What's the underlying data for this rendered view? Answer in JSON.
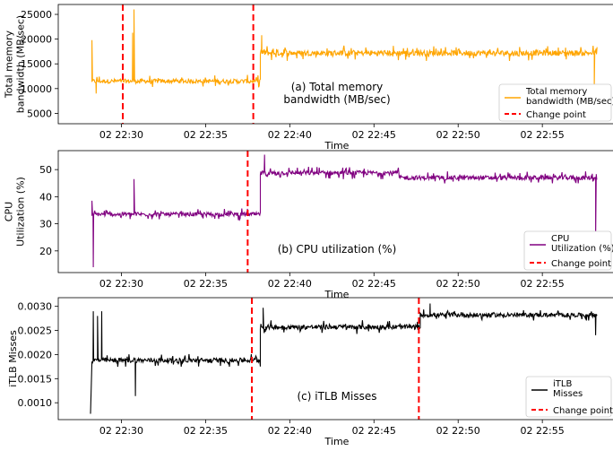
{
  "chart_data": [
    {
      "type": "line",
      "annotation": "(a) Total memory\nbandwidth (MB/sec)",
      "xlabel": "Time",
      "ylabel": "Total memory\nbandwidth (MB/sec)",
      "x_ticks": [
        "02 22:30",
        "02 22:35",
        "02 22:40",
        "02 22:45",
        "02 22:50",
        "02 22:55"
      ],
      "y_ticks": [
        5000,
        10000,
        15000,
        20000,
        25000
      ],
      "y_tick_labels": [
        "5000",
        "10000",
        "15000",
        "20000",
        "25000"
      ],
      "xlim": [
        "22:26:15",
        "22:59:15"
      ],
      "ylim": [
        2900,
        27000
      ],
      "grid": false,
      "legend_position": "lower-right",
      "series": [
        {
          "name": "Total memory\nbandwidth (MB/sec)",
          "color": "#ffa500",
          "segments": [
            {
              "start": "22:28:15",
              "end": "22:38:15",
              "level": 11500,
              "noise": 700
            },
            {
              "start": "22:38:15",
              "end": "22:58:15",
              "level": 17200,
              "noise": 900
            }
          ],
          "spikes": [
            {
              "x": "22:28:15",
              "y": 19800
            },
            {
              "x": "22:28:30",
              "y": 9000
            },
            {
              "x": "22:30:40",
              "y": 21300
            },
            {
              "x": "22:30:45",
              "y": 26000
            },
            {
              "x": "22:38:20",
              "y": 20800
            },
            {
              "x": "22:58:05",
              "y": 10500
            }
          ]
        },
        {
          "name": "Change point",
          "color": "#ff0000",
          "style": "dashed",
          "x": [
            "22:30:05",
            "22:37:50"
          ]
        }
      ]
    },
    {
      "type": "line",
      "annotation": "(b) CPU utilization (%)",
      "xlabel": "Time",
      "ylabel": "CPU\nUtilization (%)",
      "x_ticks": [
        "02 22:30",
        "02 22:35",
        "02 22:40",
        "02 22:45",
        "02 22:50",
        "02 22:55"
      ],
      "y_ticks": [
        20,
        30,
        40,
        50
      ],
      "y_tick_labels": [
        "20",
        "30",
        "40",
        "50"
      ],
      "xlim": [
        "22:26:15",
        "22:59:15"
      ],
      "ylim": [
        12,
        57
      ],
      "grid": false,
      "legend_position": "lower-right",
      "series": [
        {
          "name": "CPU\nUtilization (%)",
          "color": "#800080",
          "segments": [
            {
              "start": "22:28:15",
              "end": "22:38:15",
              "level": 33.5,
              "noise": 1.2
            },
            {
              "start": "22:38:15",
              "end": "22:46:30",
              "level": 48.8,
              "noise": 1.3
            },
            {
              "start": "22:46:30",
              "end": "22:58:15",
              "level": 47.0,
              "noise": 1.3
            }
          ],
          "spikes": [
            {
              "x": "22:28:15",
              "y": 38.5
            },
            {
              "x": "22:28:20",
              "y": 14
            },
            {
              "x": "22:30:45",
              "y": 46.5
            },
            {
              "x": "22:38:30",
              "y": 55.5
            },
            {
              "x": "22:58:10",
              "y": 24
            }
          ]
        },
        {
          "name": "Change point",
          "color": "#ff0000",
          "style": "dashed",
          "x": [
            "22:37:30"
          ]
        }
      ]
    },
    {
      "type": "line",
      "annotation": "(c) iTLB Misses",
      "xlabel": "Time",
      "ylabel": "iTLB Misses",
      "x_ticks": [
        "02 22:30",
        "02 22:35",
        "02 22:40",
        "02 22:45",
        "02 22:50",
        "02 22:55"
      ],
      "y_ticks": [
        0.001,
        0.0015,
        0.002,
        0.0025,
        0.003
      ],
      "y_tick_labels": [
        "0.0010",
        "0.0015",
        "0.0020",
        "0.0025",
        "0.0030"
      ],
      "xlim": [
        "22:26:15",
        "22:59:15"
      ],
      "ylim": [
        0.00065,
        0.00318
      ],
      "grid": false,
      "legend_position": "lower-right",
      "series": [
        {
          "name": "iTLB\nMisses",
          "color": "#000000",
          "segments": [
            {
              "start": "22:28:15",
              "end": "22:38:15",
              "level": 0.00188,
              "noise": 8e-05
            },
            {
              "start": "22:38:15",
              "end": "22:47:45",
              "level": 0.00257,
              "noise": 8e-05
            },
            {
              "start": "22:47:45",
              "end": "22:58:15",
              "level": 0.00282,
              "noise": 7e-05
            }
          ],
          "spikes": [
            {
              "x": "22:28:10",
              "y": 0.00077
            },
            {
              "x": "22:28:20",
              "y": 0.0029
            },
            {
              "x": "22:28:35",
              "y": 0.0028
            },
            {
              "x": "22:28:50",
              "y": 0.0029
            },
            {
              "x": "22:30:50",
              "y": 0.00114
            },
            {
              "x": "22:38:25",
              "y": 0.00297
            },
            {
              "x": "22:48:20",
              "y": 0.00306
            },
            {
              "x": "22:58:10",
              "y": 0.0024
            }
          ]
        },
        {
          "name": "Change point",
          "color": "#ff0000",
          "style": "dashed",
          "x": [
            "22:37:45",
            "22:47:40"
          ]
        }
      ]
    }
  ]
}
